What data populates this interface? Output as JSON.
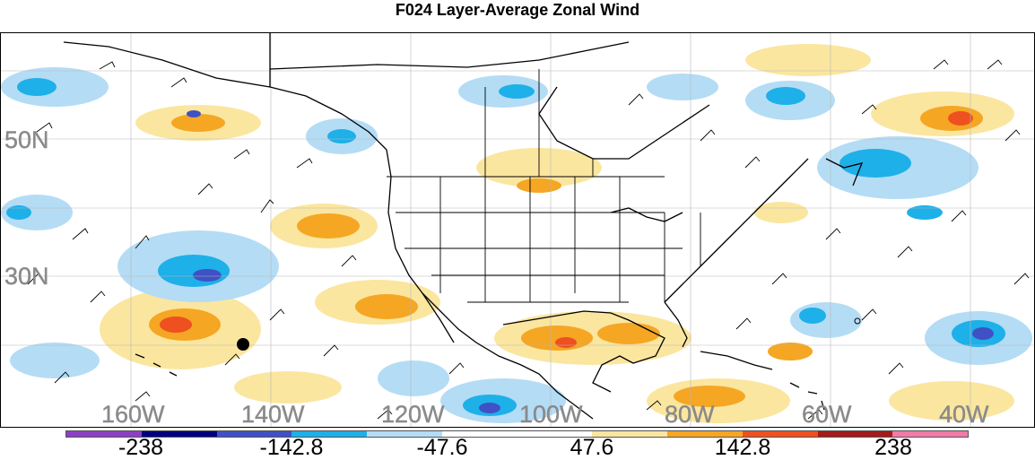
{
  "title": "F024 Layer-Average Zonal Wind",
  "map": {
    "lat_labels": [
      "50N",
      "30N"
    ],
    "lon_labels": [
      "160W",
      "140W",
      "120W",
      "100W",
      "80W",
      "60W",
      "40W"
    ],
    "marker": "black dot",
    "label_color": "#8a8a8a"
  },
  "colorbar": {
    "colors": [
      "#8d3fc4",
      "#00007f",
      "#3f51c4",
      "#1eb0e8",
      "#b4dcf5",
      "#ffffff",
      "#ffffff",
      "#fbe6a0",
      "#f5a623",
      "#ef5020",
      "#a51a1a",
      "#f07aa8"
    ],
    "tick_labels": [
      "-238",
      "-142.8",
      "-47.6",
      "47.6",
      "142.8",
      "238"
    ]
  }
}
